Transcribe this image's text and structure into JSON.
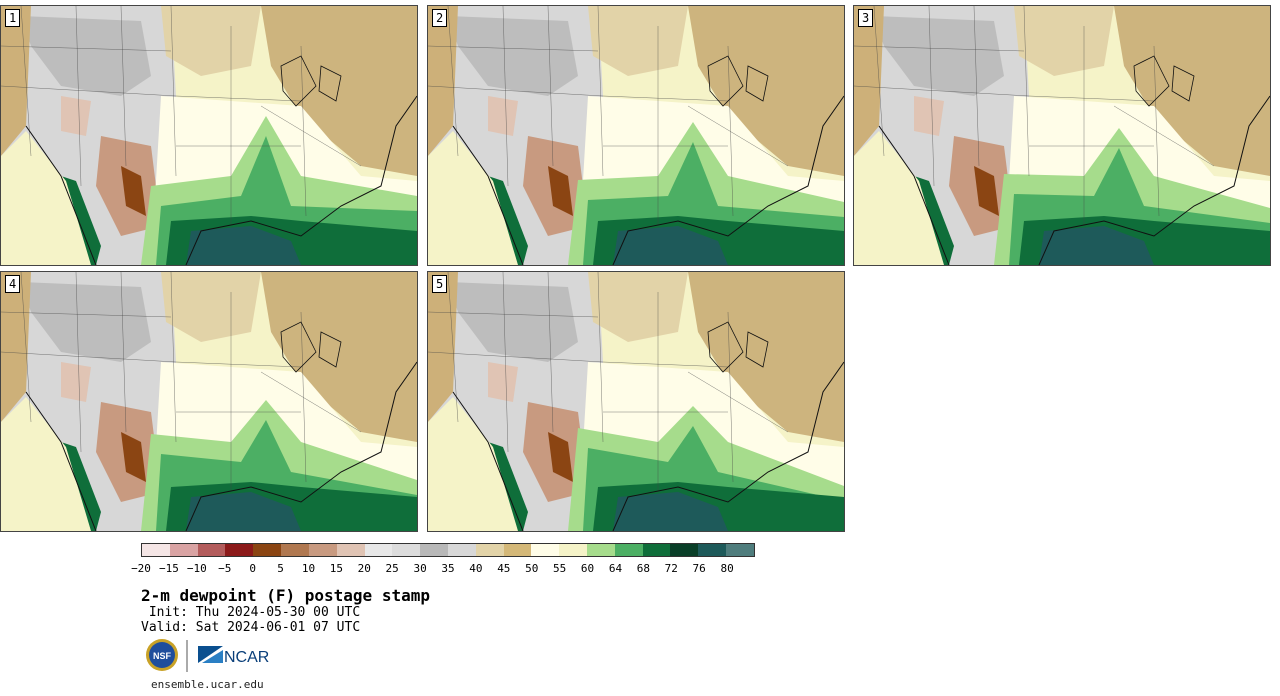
{
  "panels": [
    {
      "label": "1"
    },
    {
      "label": "2"
    },
    {
      "label": "3"
    },
    {
      "label": "4"
    },
    {
      "label": "5"
    }
  ],
  "colorbar": {
    "colors": [
      "#f5e6e6",
      "#d9a3a3",
      "#b35c5c",
      "#8c1a1a",
      "#8b4513",
      "#b07850",
      "#c89a80",
      "#e0c4b4",
      "#e8e8e8",
      "#dcdcdc",
      "#b8b8b8",
      "#d8d8d8",
      "#e2d3a8",
      "#d4b878",
      "#fffde8",
      "#f5f3c8",
      "#a6dc8c",
      "#4caf64",
      "#0f6e3a",
      "#0a3f28",
      "#1e5a5a",
      "#4f7d7d"
    ],
    "tick_labels": [
      "−20",
      "−15",
      "−10",
      "−5",
      "0",
      "5",
      "10",
      "15",
      "20",
      "25",
      "30",
      "35",
      "40",
      "45",
      "50",
      "55",
      "60",
      "64",
      "68",
      "72",
      "76",
      "80"
    ]
  },
  "title": "2-m dewpoint (F) postage stamp",
  "init": " Init: Thu 2024-05-30 00 UTC",
  "valid": "Valid: Sat 2024-06-01 07 UTC",
  "logos": {
    "nsf": "NSF",
    "ncar": "NCAR"
  },
  "site": "ensemble.ucar.edu"
}
